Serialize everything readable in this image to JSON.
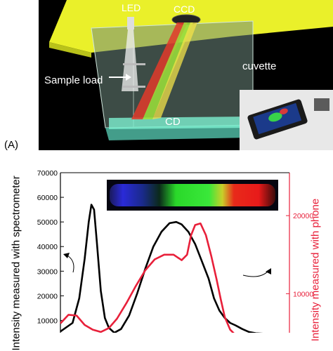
{
  "panel_a": {
    "label": "(A)",
    "annotations": {
      "led": "LED",
      "ccd": "CCD",
      "sample_load": "Sample load",
      "cd": "CD",
      "cuvette": "cuvette"
    }
  },
  "chart_data": {
    "type": "line",
    "ylabel_left": "Intensity measured with spectrometer",
    "ylabel_right": "Intensity measured with phone",
    "y_left_ticks": [
      "70000",
      "60000",
      "50000",
      "40000",
      "30000",
      "20000",
      "10000"
    ],
    "y_right_ticks": [
      "20000",
      "10000"
    ],
    "ylim_left": [
      5000,
      70000
    ],
    "ylim_right": [
      5000,
      25500
    ],
    "x_range": [
      380,
      720
    ],
    "colors": {
      "spectrometer": "#000000",
      "phone": "#e8203a"
    },
    "series": [
      {
        "id": "spectrometer",
        "axis": "left",
        "x": [
          380,
          398,
          408,
          416,
          422,
          426,
          430,
          434,
          440,
          446,
          452,
          460,
          470,
          482,
          494,
          506,
          518,
          530,
          542,
          552,
          560,
          570,
          580,
          590,
          600,
          608,
          616,
          624,
          632,
          640,
          650,
          660,
          670,
          690
        ],
        "values": [
          5500,
          9000,
          19000,
          35000,
          50000,
          57000,
          55000,
          42000,
          22000,
          11000,
          7000,
          5000,
          6500,
          12000,
          21000,
          31000,
          40000,
          46000,
          49500,
          50000,
          49000,
          46000,
          41000,
          34000,
          27000,
          19000,
          14000,
          11000,
          9000,
          8000,
          6500,
          5300,
          4800,
          4500
        ]
      },
      {
        "id": "phone",
        "axis": "right",
        "x": [
          380,
          392,
          404,
          416,
          428,
          440,
          452,
          464,
          478,
          492,
          506,
          520,
          534,
          548,
          560,
          568,
          574,
          580,
          588,
          596,
          604,
          612,
          618,
          624,
          632,
          640,
          650,
          660,
          680
        ],
        "values": [
          6200,
          7300,
          7200,
          6000,
          5400,
          5100,
          5600,
          6800,
          8800,
          11000,
          13000,
          14400,
          15000,
          15000,
          14300,
          15000,
          17500,
          18800,
          19000,
          17500,
          14800,
          11800,
          9300,
          7000,
          5400,
          4700,
          4400,
          4300,
          4200
        ]
      }
    ]
  }
}
